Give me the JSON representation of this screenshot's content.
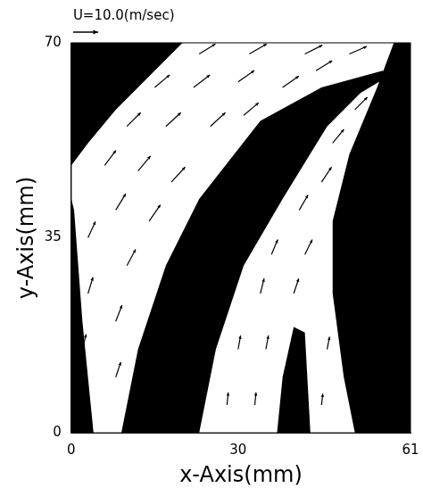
{
  "chart_data": {
    "type": "vector_field",
    "x_label": "x-Axis(mm)",
    "y_label": "y-Axis(mm)",
    "xlim": [
      0,
      61
    ],
    "ylim": [
      0,
      70
    ],
    "xticks": [
      0,
      30,
      61
    ],
    "yticks": [
      0,
      35,
      70
    ],
    "grid": false,
    "color": "#000000",
    "reference_vector": {
      "label": "U=10.0(m/sec)",
      "u": 10,
      "v": 0
    },
    "regions": [
      {
        "points": [
          [
            0,
            70
          ],
          [
            20,
            70
          ],
          [
            14,
            64
          ],
          [
            8,
            58
          ],
          [
            3,
            52
          ],
          [
            0,
            48
          ]
        ]
      },
      {
        "points": [
          [
            0,
            0
          ],
          [
            4,
            0
          ],
          [
            2,
            20
          ],
          [
            0.5,
            40
          ],
          [
            0,
            42
          ]
        ]
      },
      {
        "points": [
          [
            9,
            0
          ],
          [
            23,
            0
          ],
          [
            26,
            15
          ],
          [
            31,
            30
          ],
          [
            38,
            42
          ],
          [
            46,
            55
          ],
          [
            52,
            61
          ],
          [
            57,
            64
          ],
          [
            56,
            65
          ],
          [
            45,
            62
          ],
          [
            34,
            56
          ],
          [
            23,
            42
          ],
          [
            17,
            30
          ],
          [
            12,
            15
          ]
        ]
      },
      {
        "points": [
          [
            37,
            0
          ],
          [
            43,
            0
          ],
          [
            42,
            18
          ],
          [
            40,
            19
          ],
          [
            38,
            10
          ]
        ]
      },
      {
        "points": [
          [
            51,
            0
          ],
          [
            61,
            0
          ],
          [
            61,
            70
          ],
          [
            58,
            70
          ],
          [
            55,
            62
          ],
          [
            50,
            50
          ],
          [
            47,
            38
          ],
          [
            47,
            25
          ],
          [
            49,
            10
          ]
        ]
      }
    ],
    "vectors": {
      "x": [
        2,
        2,
        3,
        3,
        8,
        8,
        10,
        8,
        14,
        6,
        12,
        18,
        10,
        17,
        25,
        31,
        15,
        22,
        30,
        38,
        44,
        23,
        32,
        42,
        50,
        28,
        33,
        30,
        35,
        34,
        40,
        45,
        46,
        36,
        42,
        41,
        45,
        47,
        51
      ],
      "y": [
        5,
        15,
        25,
        35,
        10,
        20,
        30,
        40,
        38,
        48,
        47,
        45,
        55,
        55,
        55,
        57,
        62,
        62,
        63,
        62,
        65,
        68,
        68,
        68,
        68,
        5,
        5,
        15,
        15,
        25,
        25,
        5,
        15,
        32,
        32,
        40,
        45,
        52,
        58
      ],
      "u": [
        1,
        1.5,
        2,
        3,
        2,
        2.5,
        3.5,
        4,
        4.5,
        4.5,
        5,
        5.5,
        5.5,
        6,
        6,
        6,
        6,
        6.5,
        6.5,
        6.5,
        6.5,
        6.5,
        7,
        7,
        7,
        0.5,
        0.5,
        1,
        1,
        1.5,
        2,
        0.5,
        1,
        2.5,
        3,
        3.5,
        4,
        4.5,
        5
      ],
      "v": [
        6,
        6,
        6.5,
        6.5,
        6,
        6.5,
        6.5,
        6.5,
        6.5,
        6,
        6,
        6,
        5.5,
        5.5,
        5.5,
        5,
        5,
        5,
        4.5,
        4.5,
        4,
        4,
        4,
        3.5,
        3,
        5,
        5,
        5.5,
        5.5,
        6,
        6,
        4.5,
        5,
        6,
        6,
        6,
        6,
        5.5,
        5
      ]
    }
  }
}
